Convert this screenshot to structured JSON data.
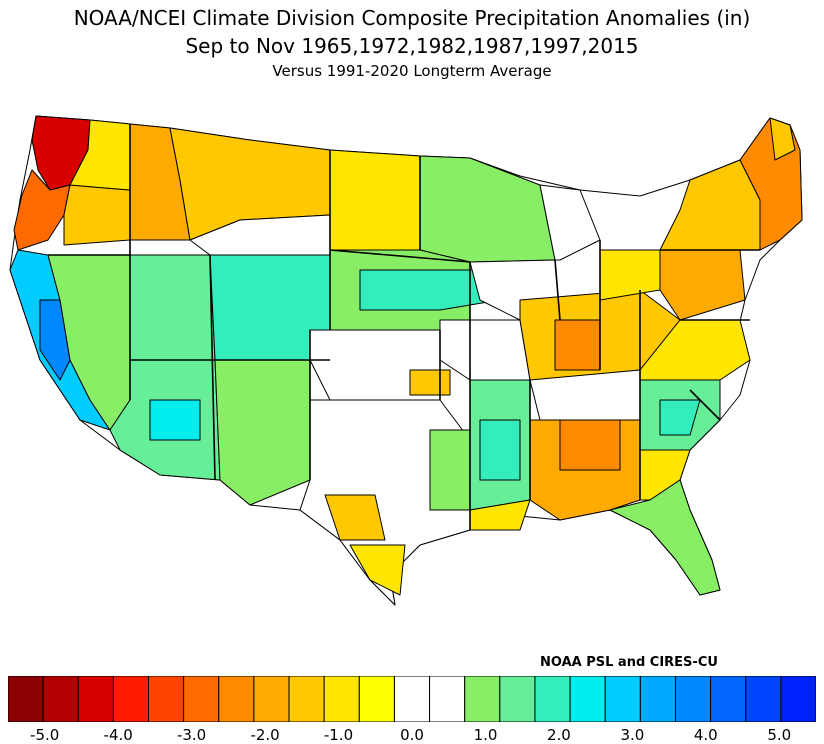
{
  "title": {
    "line1": "NOAA/NCEI Climate Division Composite Precipitation Anomalies (in)",
    "line2": "Sep to Nov  1965,1972,1982,1987,1997,2015",
    "line3": "Versus 1991-2020 Longterm Average"
  },
  "credit": "NOAA PSL and CIRES-CU",
  "colorbar": {
    "colors": [
      "#8b0000",
      "#b30000",
      "#d90000",
      "#ff1a00",
      "#ff4400",
      "#ff6a00",
      "#ff8c00",
      "#ffaa00",
      "#ffc800",
      "#ffe600",
      "#ffff00",
      "#ffffff",
      "#ffffff",
      "#88ee66",
      "#66ee99",
      "#33eebb",
      "#00eeee",
      "#00ccff",
      "#00aaff",
      "#0088ff",
      "#0066ff",
      "#0044ff",
      "#0022ff"
    ],
    "tick_labels": [
      "-5.0",
      "-4.0",
      "-3.0",
      "-2.0",
      "-1.0",
      "0.0",
      "1.0",
      "2.0",
      "3.0",
      "4.0",
      "5.0"
    ],
    "range": [
      -5.5,
      5.5
    ]
  },
  "map_regions": [
    {
      "name": "Washington west",
      "color": "#d90000"
    },
    {
      "name": "Oregon coast",
      "color": "#ff6a00"
    },
    {
      "name": "Idaho / Montana",
      "color": "#ffc800"
    },
    {
      "name": "California coast",
      "color": "#00ccff"
    },
    {
      "name": "California central",
      "color": "#0088ff"
    },
    {
      "name": "Southwest",
      "color": "#66ee99"
    },
    {
      "name": "Arizona",
      "color": "#33eebb"
    },
    {
      "name": "Central Plains",
      "color": "#88ee66"
    },
    {
      "name": "Iowa / Nebraska",
      "color": "#33eebb"
    },
    {
      "name": "Ohio Valley",
      "color": "#ffc800"
    },
    {
      "name": "Indiana",
      "color": "#ff8c00"
    },
    {
      "name": "Mississippi Valley",
      "color": "#66ee99"
    },
    {
      "name": "Alabama / Georgia",
      "color": "#ffaa00"
    },
    {
      "name": "Northeast",
      "color": "#ff8c00"
    },
    {
      "name": "Texas",
      "color": "#ffc800"
    },
    {
      "name": "Florida",
      "color": "#88ee66"
    }
  ]
}
